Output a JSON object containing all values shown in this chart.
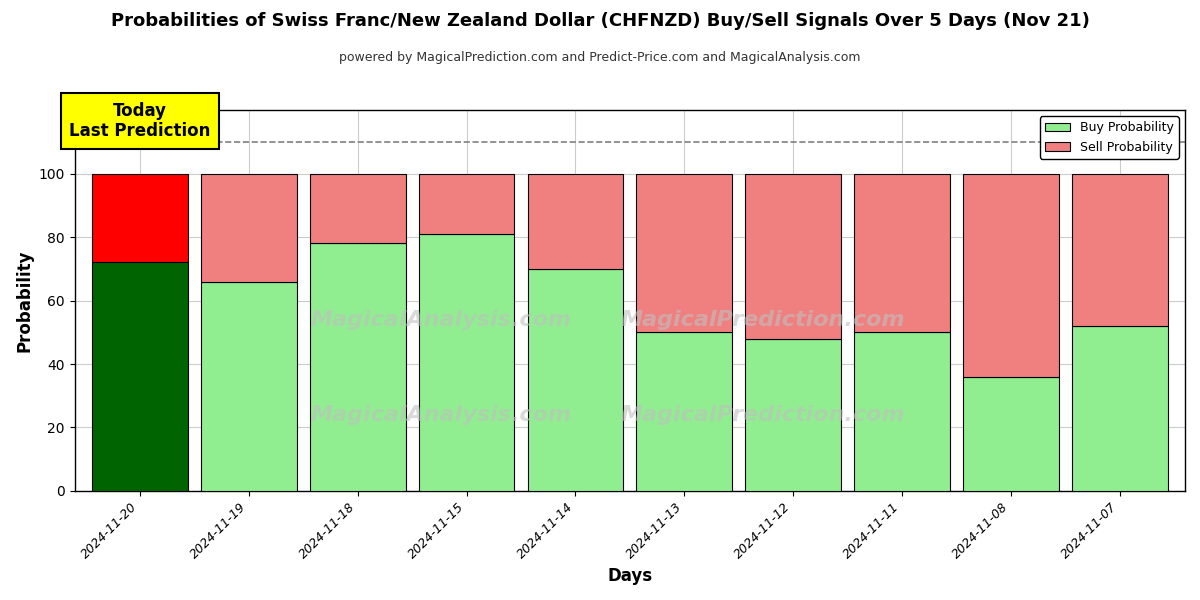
{
  "title": "Probabilities of Swiss Franc/New Zealand Dollar (CHFNZD) Buy/Sell Signals Over 5 Days (Nov 21)",
  "subtitle": "powered by MagicalPrediction.com and Predict-Price.com and MagicalAnalysis.com",
  "xlabel": "Days",
  "ylabel": "Probability",
  "dates": [
    "2024-11-20",
    "2024-11-19",
    "2024-11-18",
    "2024-11-15",
    "2024-11-14",
    "2024-11-13",
    "2024-11-12",
    "2024-11-11",
    "2024-11-08",
    "2024-11-07"
  ],
  "buy_values": [
    72,
    66,
    78,
    81,
    70,
    50,
    48,
    50,
    36,
    52
  ],
  "sell_values": [
    28,
    34,
    22,
    19,
    30,
    50,
    52,
    50,
    64,
    48
  ],
  "today_buy_color": "#006400",
  "today_sell_color": "#FF0000",
  "other_buy_color": "#90EE90",
  "other_sell_color": "#F08080",
  "ylim": [
    0,
    120
  ],
  "yticks": [
    0,
    20,
    40,
    60,
    80,
    100
  ],
  "dashed_line_y": 110,
  "annotation_text": "Today\nLast Prediction",
  "annotation_bg": "#FFFF00",
  "watermark_line1": "MagicalAnalysis.com",
  "watermark_line2": "MagicalPrediction.com",
  "legend_buy_label": "Buy Probability",
  "legend_sell_label": "Sell Probability",
  "background_color": "#FFFFFF",
  "grid_color": "#CCCCCC"
}
